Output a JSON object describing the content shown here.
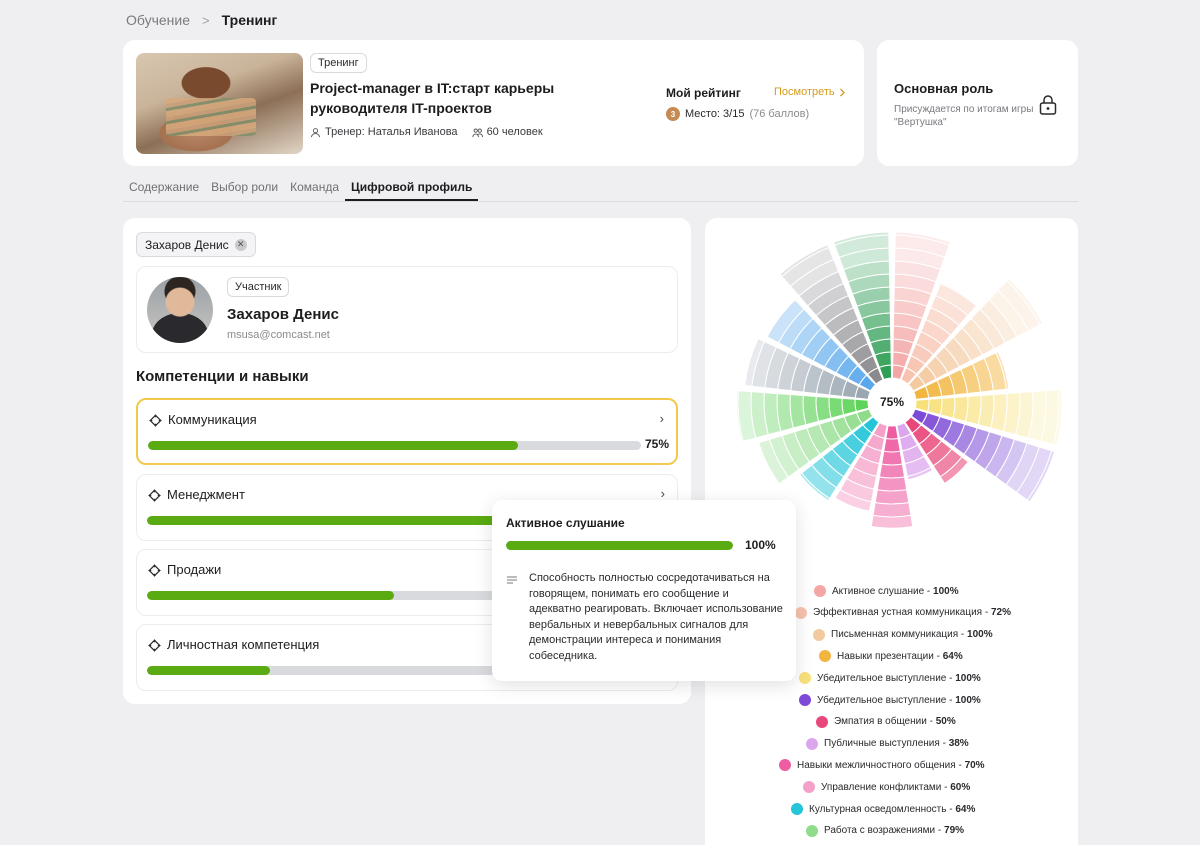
{
  "breadcrumb": {
    "parent": "Обучение",
    "separator": ">",
    "current": "Тренинг"
  },
  "course": {
    "tag": "Тренинг",
    "title": "Project-manager в IT:старт карьеры руководителя IT-проектов",
    "trainer": "Тренер: Наталья Иванова",
    "participants": "60 человек"
  },
  "rating": {
    "title": "Мой рейтинг",
    "link": "Посмотреть",
    "medal": "3",
    "place": "Место: 3/15",
    "points": "(76 баллов)"
  },
  "role": {
    "title": "Основная роль",
    "description": "Присуждается по итогам игры \"Вертушка\""
  },
  "tabs": [
    "Содержание",
    "Выбор роли",
    "Команда",
    "Цифровой профиль"
  ],
  "active_tab": 3,
  "filter_chip": "Захаров Денис",
  "profile": {
    "tag": "Участник",
    "name": "Захаров Денис",
    "email": "msusa@comcast.net"
  },
  "section_title": "Компетенции и навыки",
  "skills": [
    {
      "name": "Коммуникация",
      "progress": 75,
      "pct_label": "75%",
      "selected": true
    },
    {
      "name": "Менеджмент",
      "progress": 90,
      "pct_label": "",
      "selected": false
    },
    {
      "name": "Продажи",
      "progress": 50,
      "pct_label": "",
      "selected": false
    },
    {
      "name": "Личностная компетенция",
      "progress": 25,
      "pct_label": "",
      "selected": false
    }
  ],
  "tooltip": {
    "title": "Активное слушание",
    "progress": 100,
    "pct_label": "100%",
    "description": "Способность полностью сосредотачиваться на говорящем, понимать его сообщение и адекватно реагировать. Включает использование вербальных и невербальных сигналов для демонстрации интереса и понимания собеседника."
  },
  "chart_data": {
    "type": "radial-bar",
    "center_label": "75%",
    "segments": [
      {
        "name": "Активное слушание",
        "value": 100,
        "label": "100%",
        "color": "#f4a6a6"
      },
      {
        "name": "Эффективная устная коммуникация",
        "value": 72,
        "label": "72%",
        "color": "#f7c2ae"
      },
      {
        "name": "Письменная коммуникация",
        "value": 100,
        "label": "100%",
        "color": "#f3c9a0"
      },
      {
        "name": "Навыки презентации",
        "value": 64,
        "label": "64%",
        "color": "#f2b640"
      },
      {
        "name": "Убедительное выступление",
        "value": 100,
        "label": "100%",
        "color": "#f7e07a"
      },
      {
        "name": "Убедительное выступление",
        "value": 100,
        "label": "100%",
        "color": "#7c4ad6"
      },
      {
        "name": "Эмпатия в общении",
        "value": 50,
        "label": "50%",
        "color": "#e8477a"
      },
      {
        "name": "Публичные выступления",
        "value": 38,
        "label": "38%",
        "color": "#dca6ee"
      },
      {
        "name": "Навыки межличностного общения",
        "value": 70,
        "label": "70%",
        "color": "#ee5ca2"
      },
      {
        "name": "Управление конфликтами",
        "value": 60,
        "label": "60%",
        "color": "#f4a0c8"
      },
      {
        "name": "Культурная осведомленность",
        "value": 64,
        "label": "64%",
        "color": "#24c5d8"
      },
      {
        "name": "Работа с возражениями",
        "value": 79,
        "label": "79%",
        "color": "#8fdc8a"
      },
      {
        "name": "",
        "value": 90,
        "label": "",
        "color": "#5fd25a"
      },
      {
        "name": "",
        "value": 85,
        "label": "",
        "color": "#9aa6b0"
      },
      {
        "name": "",
        "value": 80,
        "label": "",
        "color": "#5aa8ec"
      },
      {
        "name": "",
        "value": 100,
        "label": "",
        "color": "#8a8a8e"
      },
      {
        "name": "",
        "value": 100,
        "label": "",
        "color": "#2f9e55"
      }
    ]
  },
  "colors": {
    "accent_green": "#5aab12",
    "selected_border": "#f2c94c",
    "link": "#d49a1a"
  }
}
